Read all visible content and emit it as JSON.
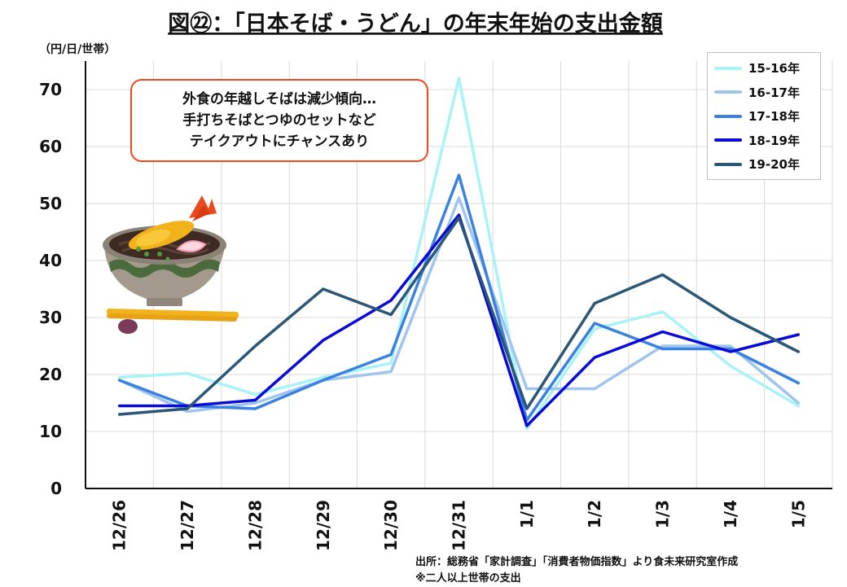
{
  "title": "図㉒：「日本そば・うどん」の年末年始の支出金額",
  "unit_label": "（円/日/世帯）",
  "annotation": {
    "lines": [
      "外食の年越しそばは減少傾向…",
      "手打ちそばとつゆのセットなど",
      "テイクアウトにチャンスあり"
    ],
    "border_color": "#e8491d"
  },
  "source": {
    "line1": "出所：総務省「家計調査」「消費者物価指数」より食未来研究室作成",
    "line2": "※二人以上世帯の支出"
  },
  "illustration": "tempura-soba-bowl-with-chopsticks",
  "chart_data": {
    "type": "line",
    "categories": [
      "12/26",
      "12/27",
      "12/28",
      "12/29",
      "12/30",
      "12/31",
      "1/1",
      "1/2",
      "1/3",
      "1/4",
      "1/5"
    ],
    "ylim": [
      0,
      75
    ],
    "yticks": [
      0,
      10,
      20,
      30,
      40,
      50,
      60,
      70
    ],
    "grid": true,
    "legend_position": "top-right",
    "series": [
      {
        "name": "15-16年",
        "color": "#a8f2f8",
        "values": [
          19.5,
          20.2,
          16.5,
          19.5,
          22.0,
          72.0,
          10.5,
          28.0,
          31.0,
          21.5,
          14.5
        ]
      },
      {
        "name": "16-17年",
        "color": "#9fc5ee",
        "values": [
          19.0,
          13.5,
          15.0,
          19.0,
          20.5,
          51.0,
          17.5,
          17.5,
          25.0,
          25.0,
          15.0
        ]
      },
      {
        "name": "17-18年",
        "color": "#3b82e0",
        "values": [
          19.0,
          14.5,
          14.0,
          19.0,
          23.5,
          55.0,
          12.0,
          29.0,
          24.5,
          24.5,
          18.5
        ]
      },
      {
        "name": "18-19年",
        "color": "#0b0bd8",
        "values": [
          14.5,
          14.5,
          15.5,
          26.0,
          33.0,
          48.0,
          11.0,
          23.0,
          27.5,
          24.0,
          27.0
        ]
      },
      {
        "name": "19-20年",
        "color": "#2a5678",
        "values": [
          13.0,
          14.0,
          25.0,
          35.0,
          30.5,
          47.5,
          14.0,
          32.5,
          37.5,
          30.0,
          24.0
        ]
      }
    ]
  }
}
